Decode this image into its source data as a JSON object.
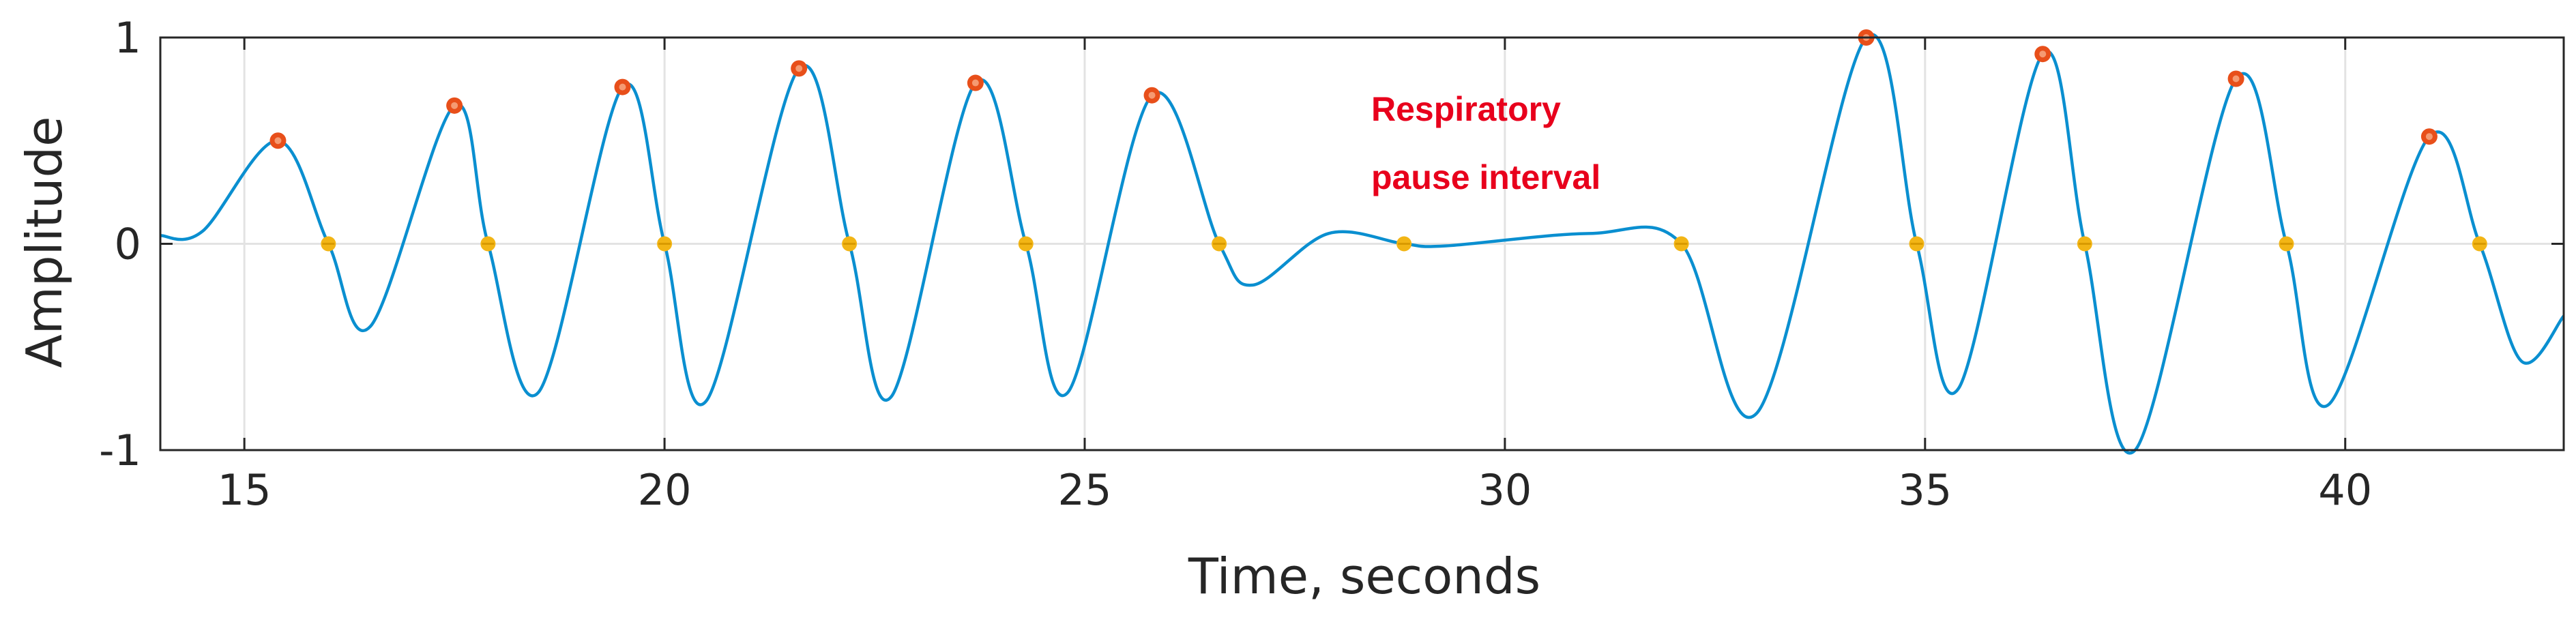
{
  "chart_data": {
    "type": "line",
    "title": "",
    "xlabel": "Time, seconds",
    "ylabel": "Amplitude",
    "xlim": [
      14,
      42.6
    ],
    "ylim": [
      -1,
      1
    ],
    "x_ticks": [
      15,
      20,
      25,
      30,
      35,
      40
    ],
    "y_ticks": [
      -1,
      0,
      1
    ],
    "x_tick_labels": [
      "15",
      "20",
      "25",
      "30",
      "35",
      "40"
    ],
    "y_tick_labels": [
      "-1",
      "0",
      "1"
    ],
    "grid": true,
    "legend": "none",
    "annotation": [
      "Respiratory",
      "pause interval"
    ],
    "signal_keypoints": {
      "x": [
        14.0,
        14.5,
        15.4,
        16.0,
        16.5,
        17.5,
        17.9,
        18.5,
        19.5,
        20.0,
        20.5,
        21.6,
        22.2,
        22.7,
        23.7,
        24.3,
        24.8,
        25.8,
        26.6,
        27.0,
        27.9,
        28.8,
        29.3,
        31.0,
        32.1,
        33.0,
        34.3,
        34.9,
        35.4,
        36.4,
        36.9,
        37.5,
        38.7,
        39.3,
        39.8,
        41.0,
        41.6,
        42.1,
        42.6
      ],
      "y": [
        0.04,
        0.06,
        0.5,
        0.0,
        -0.4,
        0.67,
        0.0,
        -0.72,
        0.76,
        0.0,
        -0.76,
        0.85,
        0.0,
        -0.74,
        0.78,
        0.0,
        -0.72,
        0.72,
        0.0,
        -0.2,
        0.05,
        0.0,
        -0.01,
        0.05,
        0.0,
        -0.82,
        1.0,
        0.0,
        -0.7,
        0.92,
        0.0,
        -1.0,
        0.8,
        0.0,
        -0.78,
        0.52,
        0.0,
        -0.57,
        -0.35
      ]
    },
    "peak_markers": {
      "x": [
        15.4,
        17.5,
        19.5,
        21.6,
        23.7,
        25.8,
        34.3,
        36.4,
        38.7,
        41.0
      ],
      "y": [
        0.5,
        0.67,
        0.76,
        0.85,
        0.78,
        0.72,
        1.0,
        0.92,
        0.8,
        0.52
      ]
    },
    "zero_crossing_markers": {
      "x": [
        16.0,
        17.9,
        20.0,
        22.2,
        24.3,
        26.6,
        28.8,
        32.1,
        34.9,
        36.9,
        39.3,
        41.6
      ],
      "y": [
        0,
        0,
        0,
        0,
        0,
        0,
        0,
        0,
        0,
        0,
        0,
        0
      ]
    },
    "colors": {
      "signal": "#0a8fd0",
      "peak_marker": "#e84f1a",
      "zero_marker": "#f2b515",
      "grid": "#e3e3e3",
      "axis": "#262626",
      "annotation": "#e8001c"
    }
  }
}
